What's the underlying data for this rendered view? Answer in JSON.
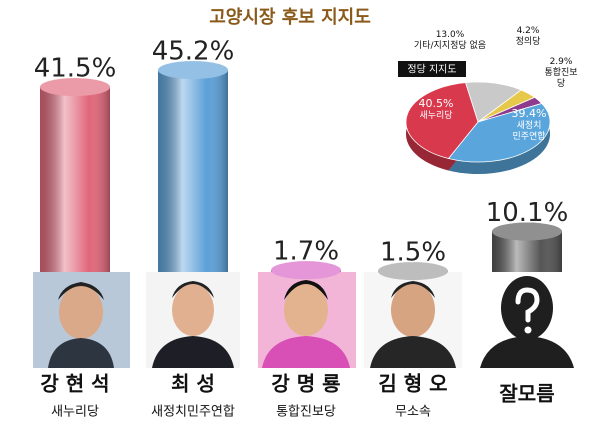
{
  "chart_data": [
    {
      "type": "bar",
      "title": "고양시장 후보 지지도",
      "categories": [
        "강 현 석",
        "최 성",
        "강 명 룡",
        "김 형 오",
        "잘모름"
      ],
      "parties": [
        "새누리당",
        "새정치민주연합",
        "통합진보당",
        "무소속",
        null
      ],
      "values": [
        41.5,
        45.2,
        1.7,
        1.5,
        10.1
      ],
      "value_labels": [
        "41.5%",
        "45.2%",
        "1.7%",
        "1.5%",
        "10.1%"
      ],
      "colors": [
        "#e0667a",
        "#5b9fd8",
        "#d65fc4",
        "#9a9a9a",
        "#555555"
      ]
    },
    {
      "type": "pie",
      "title": "정당 지지도",
      "categories": [
        "기타/지지정당 없음",
        "정의당",
        "통합진보당",
        "새정치\n민주연합",
        "새누리당"
      ],
      "values": [
        13.0,
        4.2,
        2.9,
        39.4,
        40.5
      ],
      "value_labels": [
        "13.0%",
        "4.2%",
        "2.9%",
        "39.4%",
        "40.5%"
      ],
      "colors": [
        "#c9c9c9",
        "#e6c84a",
        "#8e3b8e",
        "#5aa6dc",
        "#d8394d"
      ]
    }
  ]
}
